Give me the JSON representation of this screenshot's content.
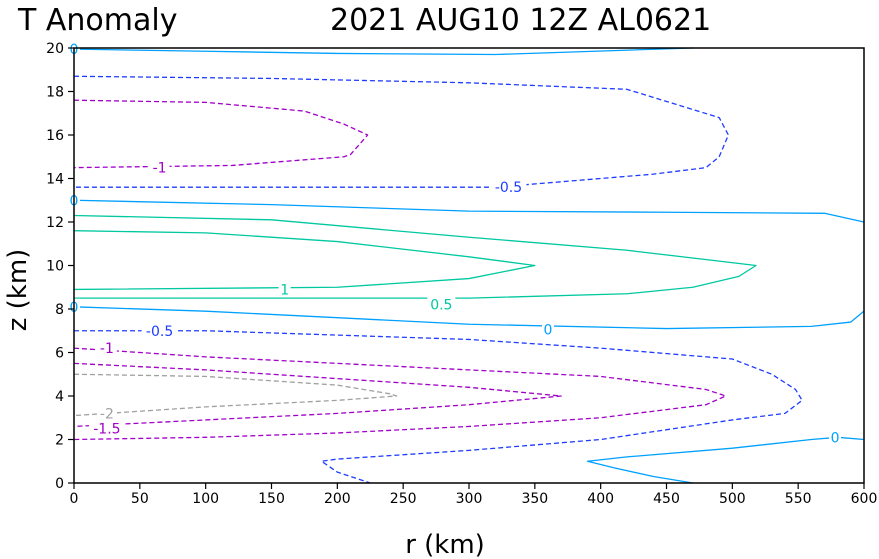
{
  "chart_data": {
    "type": "contour",
    "title_left": "T Anomaly",
    "title_right": "2021 AUG10  12Z   AL0621",
    "xlabel": "r (km)",
    "ylabel": "z (km)",
    "xlim": [
      0,
      600
    ],
    "ylim": [
      0,
      20
    ],
    "xticks": [
      0,
      50,
      100,
      150,
      200,
      250,
      300,
      350,
      400,
      450,
      500,
      550,
      600
    ],
    "yticks": [
      0,
      2,
      4,
      6,
      8,
      10,
      12,
      14,
      16,
      18,
      20
    ],
    "level_colors": {
      "-2": "#a0a0a0",
      "-1.5": "#a000c8",
      "-1": "#a000c8",
      "-0.5": "#1e3cff",
      "0": "#00a0ff",
      "0.5": "#00c8a0",
      "1": "#00c8a0"
    },
    "negative_style": "dashed",
    "contours": [
      {
        "level": 0,
        "label": "0",
        "points": [
          [
            0,
            19.95
          ],
          [
            100,
            19.85
          ],
          [
            200,
            19.75
          ],
          [
            320,
            19.7
          ],
          [
            470,
            20
          ]
        ]
      },
      {
        "level": -0.5,
        "label": "",
        "points": [
          [
            0,
            18.7
          ],
          [
            150,
            18.6
          ],
          [
            300,
            18.4
          ],
          [
            420,
            18.1
          ],
          [
            490,
            16.8
          ],
          [
            497,
            16
          ],
          [
            490,
            15
          ],
          [
            480,
            14.5
          ],
          [
            440,
            14.2
          ],
          [
            360,
            13.8
          ],
          [
            320,
            13.6
          ],
          [
            200,
            13.6
          ],
          [
            0,
            13.6
          ]
        ]
      },
      {
        "level": -0.5,
        "label": "-0.5",
        "points": [
          [
            330,
            13.6
          ]
        ]
      },
      {
        "level": -1,
        "label": "",
        "points": [
          [
            0,
            17.6
          ],
          [
            100,
            17.5
          ],
          [
            175,
            17.1
          ],
          [
            205,
            16.5
          ],
          [
            223,
            16
          ],
          [
            210,
            15.1
          ],
          [
            205,
            15
          ],
          [
            120,
            14.6
          ],
          [
            0,
            14.5
          ]
        ]
      },
      {
        "level": -1,
        "label": "-1",
        "points": [
          [
            65,
            14.5
          ]
        ]
      },
      {
        "level": 0,
        "label": "0",
        "points": [
          [
            0,
            13
          ],
          [
            150,
            12.8
          ],
          [
            300,
            12.5
          ],
          [
            450,
            12.45
          ],
          [
            570,
            12.4
          ],
          [
            600,
            12
          ]
        ]
      },
      {
        "level": 0.5,
        "label": "",
        "points": [
          [
            0,
            12.3
          ],
          [
            150,
            12.1
          ],
          [
            300,
            11.3
          ],
          [
            420,
            10.7
          ],
          [
            490,
            10.2
          ],
          [
            518,
            10
          ],
          [
            505,
            9.5
          ],
          [
            470,
            9
          ],
          [
            420,
            8.7
          ],
          [
            300,
            8.5
          ],
          [
            0,
            8.5
          ]
        ]
      },
      {
        "level": 0.5,
        "label": "0.5",
        "points": [
          [
            279,
            8.2
          ]
        ]
      },
      {
        "level": 1,
        "label": "",
        "points": [
          [
            0,
            11.6
          ],
          [
            100,
            11.5
          ],
          [
            200,
            11.1
          ],
          [
            300,
            10.4
          ],
          [
            350,
            10
          ],
          [
            300,
            9.4
          ],
          [
            200,
            9
          ],
          [
            0,
            8.9
          ]
        ]
      },
      {
        "level": 1,
        "label": "1",
        "points": [
          [
            160,
            8.9
          ]
        ]
      },
      {
        "level": 0,
        "label": "0",
        "points": [
          [
            0,
            8.1
          ],
          [
            100,
            7.9
          ],
          [
            200,
            7.6
          ],
          [
            300,
            7.3
          ],
          [
            450,
            7.1
          ],
          [
            560,
            7.2
          ],
          [
            590,
            7.4
          ],
          [
            600,
            7.9
          ]
        ]
      },
      {
        "level": 0,
        "label": "0",
        "points": [
          [
            360,
            7.05
          ]
        ]
      },
      {
        "level": -0.5,
        "label": "",
        "points": [
          [
            0,
            7
          ],
          [
            100,
            7
          ],
          [
            200,
            6.8
          ],
          [
            300,
            6.6
          ],
          [
            400,
            6.2
          ],
          [
            500,
            5.7
          ],
          [
            530,
            5
          ],
          [
            548,
            4.3
          ],
          [
            553,
            3.8
          ],
          [
            540,
            3.2
          ],
          [
            500,
            2.9
          ],
          [
            400,
            2
          ],
          [
            300,
            1.5
          ],
          [
            250,
            1.3
          ],
          [
            200,
            1.1
          ],
          [
            188,
            1
          ],
          [
            200,
            0.5
          ],
          [
            225,
            0
          ]
        ]
      },
      {
        "level": -0.5,
        "label": "-0.5",
        "points": [
          [
            65,
            7
          ]
        ]
      },
      {
        "level": -1,
        "label": "",
        "points": [
          [
            0,
            6.2
          ],
          [
            100,
            5.8
          ],
          [
            200,
            5.5
          ],
          [
            300,
            5.2
          ],
          [
            400,
            4.9
          ],
          [
            480,
            4.3
          ],
          [
            495,
            4
          ],
          [
            480,
            3.6
          ],
          [
            400,
            3
          ],
          [
            300,
            2.6
          ],
          [
            200,
            2.3
          ],
          [
            100,
            2.1
          ],
          [
            0,
            2
          ]
        ]
      },
      {
        "level": -1,
        "label": "-1",
        "points": [
          [
            25,
            6.2
          ]
        ]
      },
      {
        "level": -1.5,
        "label": "",
        "points": [
          [
            0,
            5.5
          ],
          [
            100,
            5.2
          ],
          [
            200,
            4.8
          ],
          [
            300,
            4.4
          ],
          [
            370,
            4
          ],
          [
            300,
            3.6
          ],
          [
            200,
            3.2
          ],
          [
            0,
            2.6
          ]
        ]
      },
      {
        "level": -1.5,
        "label": "-1.5",
        "points": [
          [
            25,
            2.5
          ]
        ]
      },
      {
        "level": -2,
        "label": "",
        "points": [
          [
            0,
            5
          ],
          [
            100,
            4.9
          ],
          [
            200,
            4.5
          ],
          [
            240,
            4.1
          ],
          [
            245,
            4
          ],
          [
            200,
            3.8
          ],
          [
            100,
            3.5
          ],
          [
            0,
            3.1
          ]
        ]
      },
      {
        "level": -2,
        "label": "-2",
        "points": [
          [
            25,
            3.2
          ]
        ]
      },
      {
        "level": 0,
        "label": "",
        "points": [
          [
            470,
            0
          ],
          [
            440,
            0.3
          ],
          [
            410,
            0.7
          ],
          [
            390,
            1
          ],
          [
            420,
            1.2
          ],
          [
            500,
            1.6
          ],
          [
            560,
            2
          ],
          [
            580,
            2.1
          ],
          [
            600,
            2
          ]
        ]
      },
      {
        "level": 0,
        "label": "0",
        "points": [
          [
            578,
            2.1
          ]
        ]
      }
    ]
  }
}
